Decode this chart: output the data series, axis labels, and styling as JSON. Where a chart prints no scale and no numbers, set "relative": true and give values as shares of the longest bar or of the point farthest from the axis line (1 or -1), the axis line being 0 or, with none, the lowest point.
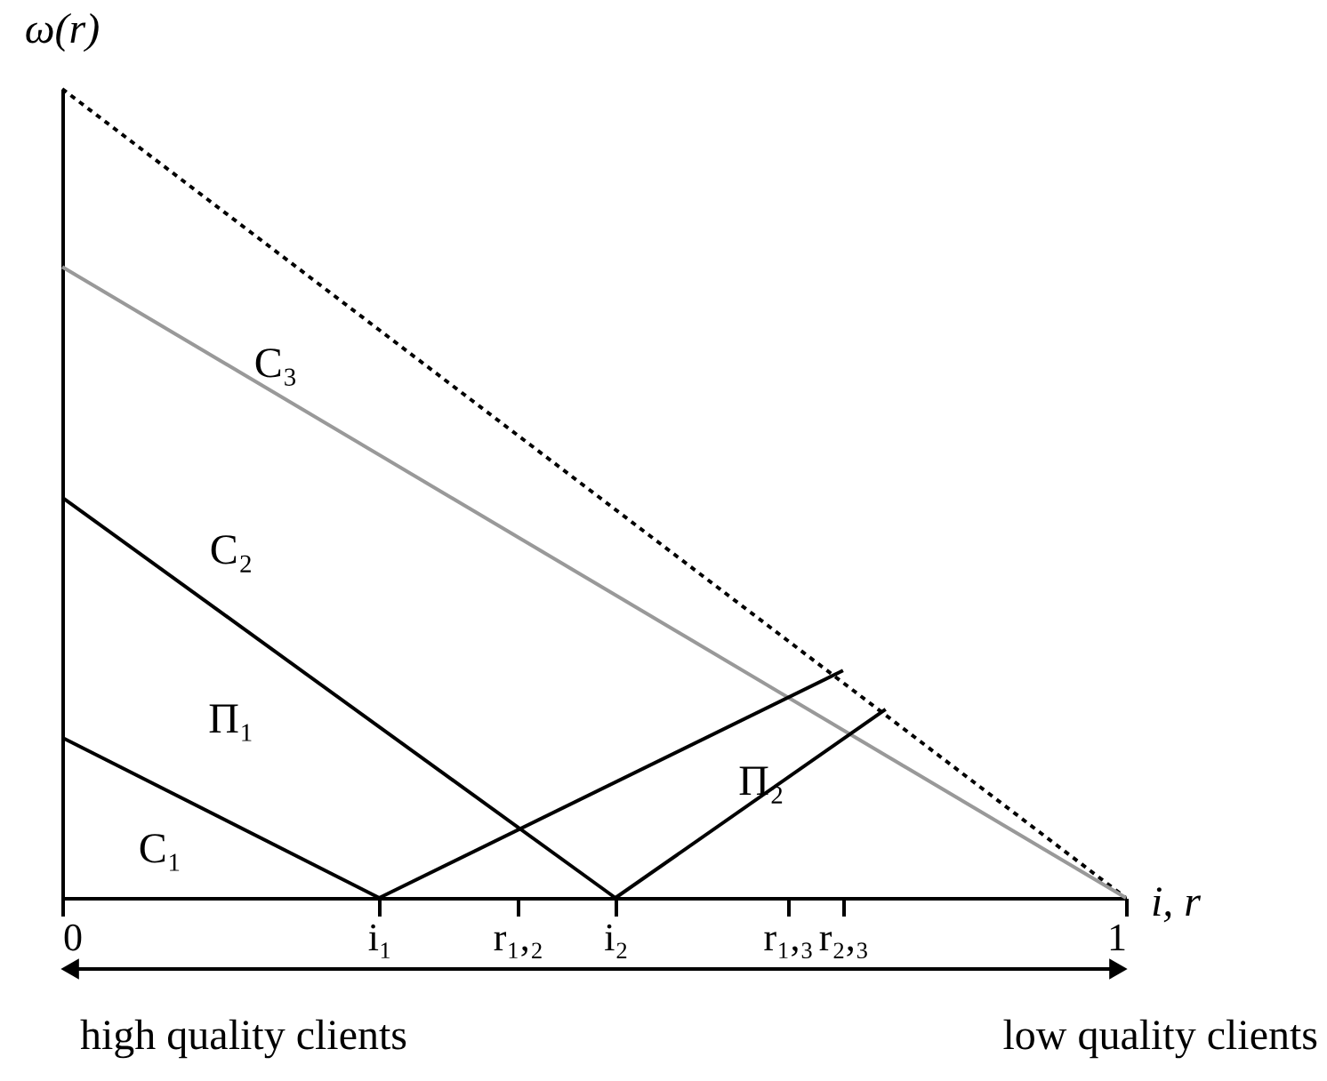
{
  "chart_data": {
    "type": "line",
    "relative": true,
    "xlabel": "i, r",
    "ylabel": "ω(r)",
    "xlim": [
      0,
      1
    ],
    "xticks": [
      0,
      {
        "value": 0.298,
        "label": "i₁"
      },
      {
        "value": 0.428,
        "label": "r₁,₂"
      },
      {
        "value": 0.52,
        "label": "i₂"
      },
      {
        "value": 0.682,
        "label": "r₁,₃"
      },
      {
        "value": 0.734,
        "label": "r₂,₃"
      },
      1
    ],
    "series": [
      {
        "x": [
          0,
          1
        ],
        "values": [
          1,
          0
        ],
        "color": "#000000",
        "line_style": "dotted"
      },
      {
        "x": [
          0,
          1
        ],
        "values": [
          0.78,
          0
        ],
        "color": "#999999",
        "line_style": "solid"
      },
      {
        "x": [
          0,
          0.52
        ],
        "values": [
          0.495,
          0
        ],
        "color": "#000000",
        "line_style": "solid"
      },
      {
        "x": [
          0,
          0.298
        ],
        "values": [
          0.198,
          0
        ],
        "color": "#000000",
        "line_style": "solid"
      },
      {
        "x": [
          0.298,
          0.734
        ],
        "values": [
          0,
          0.281
        ],
        "color": "#000000",
        "line_style": "solid"
      },
      {
        "x": [
          0.52,
          0.774
        ],
        "values": [
          0,
          0.233
        ],
        "color": "#000000",
        "line_style": "solid"
      }
    ],
    "annotations": [
      "C₃",
      "C₂",
      "Π₁",
      "Π₂",
      "C₁",
      "high quality clients",
      "low quality clients"
    ]
  }
}
